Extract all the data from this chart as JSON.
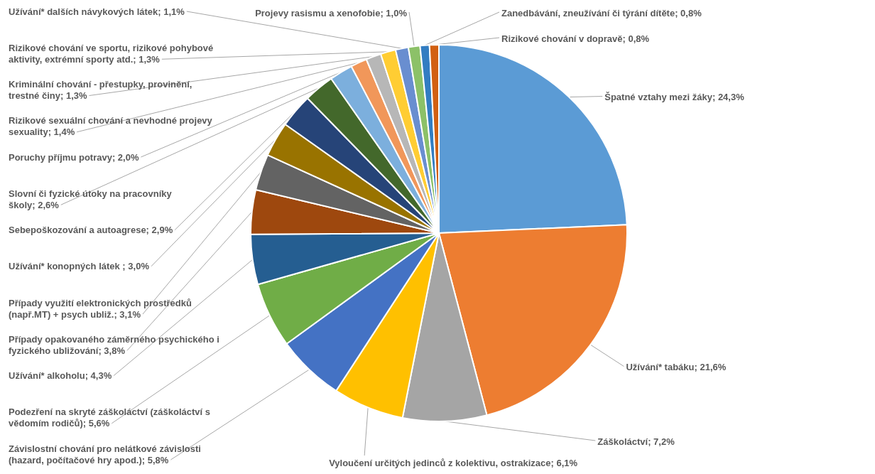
{
  "chart_data": {
    "type": "pie",
    "categories": [
      "Špatné vztahy mezi žáky",
      "Užívání* tabáku",
      "Záškoláctví",
      "Vyloučení určitých jedinců z kolektivu, ostrakizace",
      "Závislostní chování pro nelátkové závislosti (hazard, počítačové hry apod.)",
      "Podezření na skryté záškoláctví (záškoláctví s vědomím rodičů)",
      "Užívání* alkoholu",
      "Případy opakovaného záměrného psychického i fyzického ubližování",
      "Případy využití elektronických prostředků (např.MT) + psych ubliž.",
      "Užívání* konopných látek ",
      "Sebepoškozování a autoagrese",
      "Slovní či fyzické útoky na pracovníky školy",
      "Poruchy příjmu potravy",
      "Rizikové sexuální chování a nevhodné projevy sexuality",
      "Kriminální chování - přestupky, provinění, trestné činy",
      "Rizikové chování ve sportu, rizikové pohybové aktivity, extrémní sporty atd.",
      "Užívání* dalších návykových látek",
      "Projevy rasismu a xenofobie",
      "Zanedbávání, zneužívání či týrání dítěte",
      "Rizikové chování v dopravě"
    ],
    "values": [
      24.3,
      21.6,
      7.2,
      6.1,
      5.8,
      5.6,
      4.3,
      3.8,
      3.1,
      3.0,
      2.9,
      2.6,
      2.0,
      1.4,
      1.3,
      1.3,
      1.1,
      1.0,
      0.8,
      0.8
    ],
    "value_labels": [
      "24,3%",
      "21,6%",
      "7,2%",
      "6,1%",
      "5,8%",
      "5,6%",
      "4,3%",
      "3,8%",
      "3,1%",
      "3,0%",
      "2,9%",
      "2,6%",
      "2,0%",
      "1,4%",
      "1,3%",
      "1,3%",
      "1,1%",
      "1,0%",
      "0,8%",
      "0,8%"
    ],
    "colors": [
      "#5b9bd5",
      "#ed7d31",
      "#a5a5a5",
      "#ffc000",
      "#4472c4",
      "#70ad47",
      "#255e91",
      "#9e480e",
      "#636363",
      "#997300",
      "#264478",
      "#43682b",
      "#7cafdd",
      "#f1975a",
      "#b7b7b7",
      "#ffcd33",
      "#698ed0",
      "#8cc168",
      "#327dc2",
      "#d26012"
    ]
  }
}
